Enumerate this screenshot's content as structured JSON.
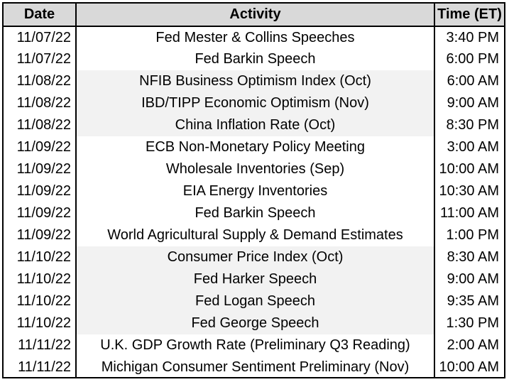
{
  "table": {
    "headers": {
      "date": "Date",
      "activity": "Activity",
      "time": "Time (ET)"
    },
    "rows": [
      {
        "date": "11/07/22",
        "activity": "Fed Mester & Collins Speeches",
        "time": "3:40 PM",
        "shaded": false
      },
      {
        "date": "11/07/22",
        "activity": "Fed Barkin Speech",
        "time": "6:00 PM",
        "shaded": false
      },
      {
        "date": "11/08/22",
        "activity": "NFIB Business Optimism Index (Oct)",
        "time": "6:00 AM",
        "shaded": true
      },
      {
        "date": "11/08/22",
        "activity": "IBD/TIPP Economic Optimism (Nov)",
        "time": "9:00 AM",
        "shaded": true
      },
      {
        "date": "11/08/22",
        "activity": "China Inflation Rate (Oct)",
        "time": "8:30 PM",
        "shaded": true
      },
      {
        "date": "11/09/22",
        "activity": "ECB Non-Monetary Policy Meeting",
        "time": "3:00 AM",
        "shaded": false
      },
      {
        "date": "11/09/22",
        "activity": "Wholesale Inventories (Sep)",
        "time": "10:00 AM",
        "shaded": false
      },
      {
        "date": "11/09/22",
        "activity": "EIA Energy Inventories",
        "time": "10:30 AM",
        "shaded": false
      },
      {
        "date": "11/09/22",
        "activity": "Fed Barkin Speech",
        "time": "11:00 AM",
        "shaded": false
      },
      {
        "date": "11/09/22",
        "activity": "World Agricultural Supply & Demand Estimates",
        "time": "1:00 PM",
        "shaded": false
      },
      {
        "date": "11/10/22",
        "activity": "Consumer Price Index (Oct)",
        "time": "8:30 AM",
        "shaded": true
      },
      {
        "date": "11/10/22",
        "activity": "Fed Harker Speech",
        "time": "9:00 AM",
        "shaded": true
      },
      {
        "date": "11/10/22",
        "activity": "Fed Logan Speech",
        "time": "9:35 AM",
        "shaded": true
      },
      {
        "date": "11/10/22",
        "activity": "Fed George Speech",
        "time": "1:30 PM",
        "shaded": true
      },
      {
        "date": "11/11/22",
        "activity": "U.K. GDP Growth Rate (Preliminary Q3 Reading)",
        "time": "2:00 AM",
        "shaded": false
      },
      {
        "date": "11/11/22",
        "activity": "Michigan Consumer Sentiment Preliminary (Nov)",
        "time": "10:00 AM",
        "shaded": false
      }
    ]
  }
}
